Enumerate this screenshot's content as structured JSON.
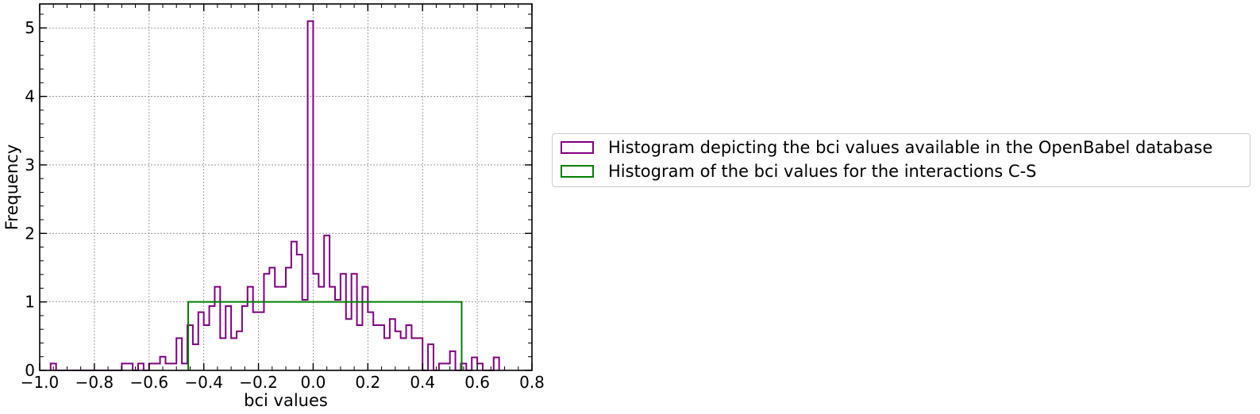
{
  "chart_data": {
    "type": "histogram",
    "xlabel": "bci values",
    "ylabel": "Frequency",
    "xlim": [
      -1.0,
      0.8
    ],
    "ylim": [
      0,
      5.35
    ],
    "xticks": [
      "−1.0",
      "−0.8",
      "−0.6",
      "−0.4",
      "−0.2",
      "0.0",
      "0.2",
      "0.4",
      "0.6",
      "0.8"
    ],
    "xtick_values": [
      -1.0,
      -0.8,
      -0.6,
      -0.4,
      -0.2,
      0.0,
      0.2,
      0.4,
      0.6,
      0.8
    ],
    "yticks": [
      "0",
      "1",
      "2",
      "3",
      "4",
      "5"
    ],
    "ytick_values": [
      0,
      1,
      2,
      3,
      4,
      5
    ],
    "grid": true,
    "legend_position": "outside-right",
    "series": [
      {
        "name": "Histogram depicting the bci values available in the OpenBabel database",
        "color": "#800080",
        "bin_start": -0.96,
        "bin_width": 0.02,
        "values": [
          0.1,
          0,
          0,
          0,
          0,
          0,
          0,
          0,
          0,
          0,
          0,
          0,
          0,
          0.1,
          0.1,
          0,
          0.1,
          0,
          0.1,
          0.1,
          0.2,
          0.1,
          0.1,
          0.47,
          0.1,
          0.66,
          0.38,
          0.85,
          0.66,
          0.94,
          1.22,
          0.47,
          0.94,
          0.47,
          0.57,
          0.94,
          1.22,
          0.85,
          0.85,
          1.41,
          1.5,
          1.22,
          1.22,
          1.5,
          1.88,
          1.69,
          1.03,
          5.1,
          1.41,
          1.22,
          1.97,
          1.22,
          1.03,
          1.41,
          0.75,
          1.41,
          0.66,
          1.22,
          0.85,
          0.66,
          0.66,
          0.47,
          0.75,
          0.57,
          0.47,
          0.66,
          0.47,
          0.47,
          0,
          0.38,
          0,
          0.1,
          0.1,
          0.28,
          0,
          0.1,
          0,
          0.19,
          0.1,
          0,
          0,
          0.19
        ]
      },
      {
        "name": "Histogram of the bci values for the interactions C-S",
        "color": "#008000",
        "bin_edges": [
          -0.457,
          0.543
        ],
        "values": [
          1
        ]
      }
    ]
  }
}
